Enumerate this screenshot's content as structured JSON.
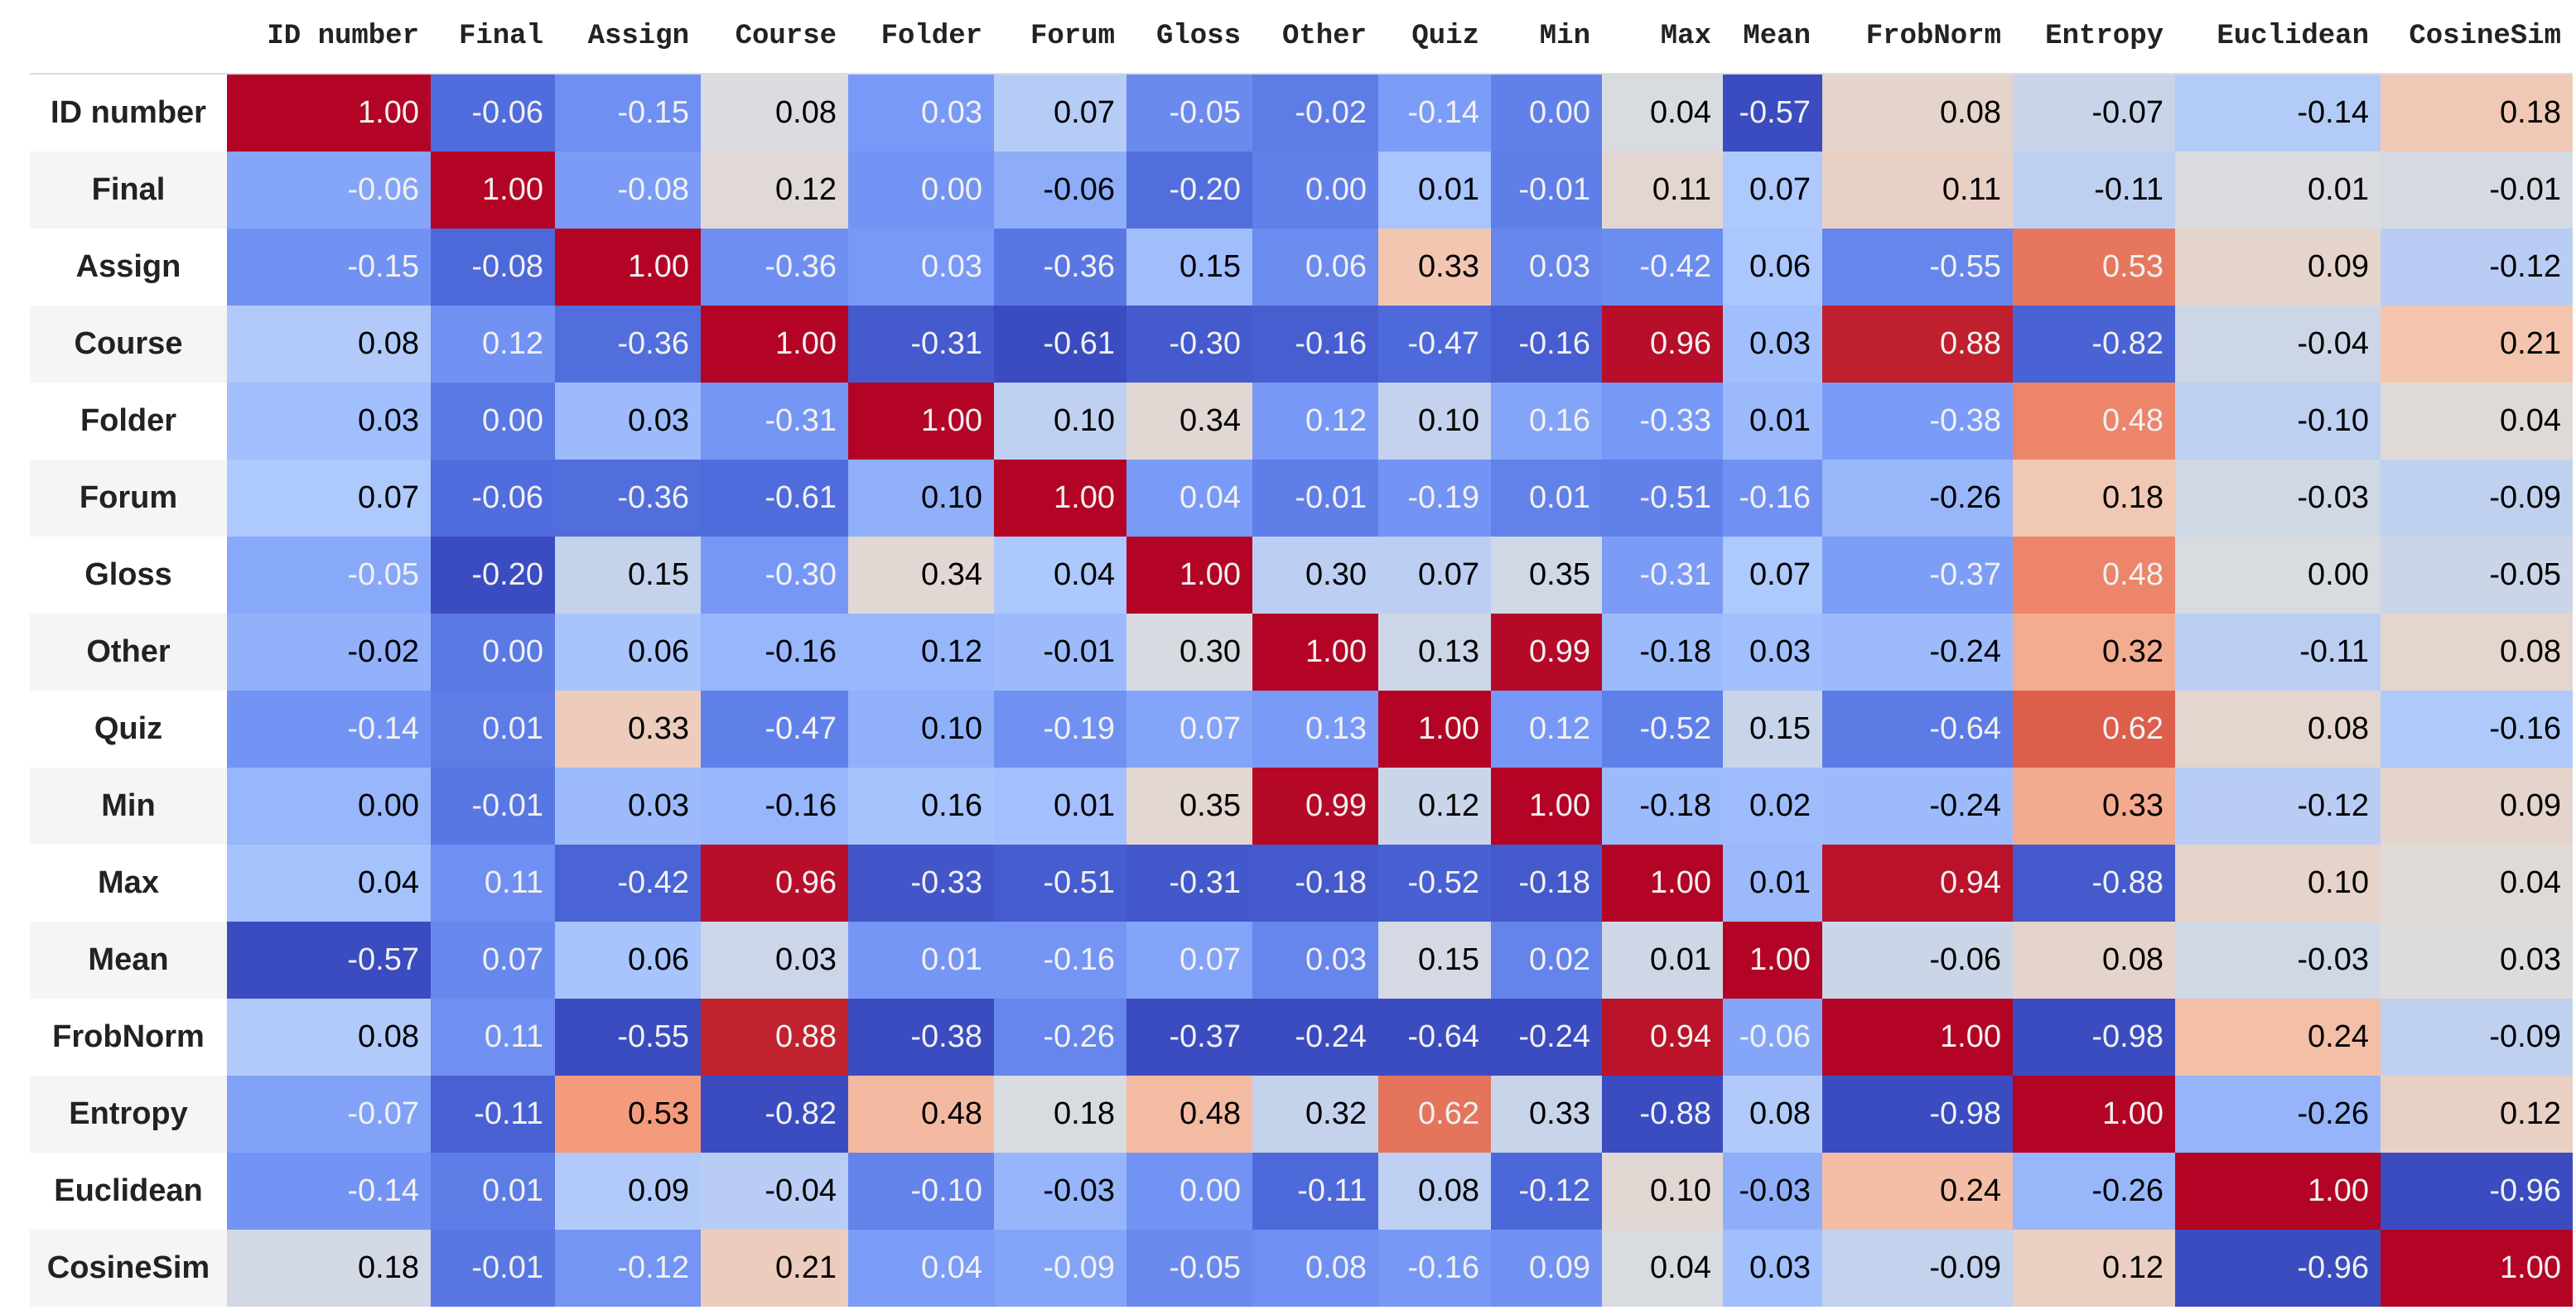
{
  "table": {
    "columns": [
      "ID number",
      "Final",
      "Assign",
      "Course",
      "Folder",
      "Forum",
      "Gloss",
      "Other",
      "Quiz",
      "Min",
      "Max",
      "Mean",
      "FrobNorm",
      "Entropy",
      "Euclidean",
      "CosineSim"
    ],
    "rows": [
      {
        "label": "ID number",
        "values": [
          "1.00",
          "-0.06",
          "-0.15",
          "0.08",
          "0.03",
          "0.07",
          "-0.05",
          "-0.02",
          "-0.14",
          "0.00",
          "0.04",
          "-0.57",
          "0.08",
          "-0.07",
          "-0.14",
          "0.18"
        ]
      },
      {
        "label": "Final",
        "values": [
          "-0.06",
          "1.00",
          "-0.08",
          "0.12",
          "0.00",
          "-0.06",
          "-0.20",
          "0.00",
          "0.01",
          "-0.01",
          "0.11",
          "0.07",
          "0.11",
          "-0.11",
          "0.01",
          "-0.01"
        ]
      },
      {
        "label": "Assign",
        "values": [
          "-0.15",
          "-0.08",
          "1.00",
          "-0.36",
          "0.03",
          "-0.36",
          "0.15",
          "0.06",
          "0.33",
          "0.03",
          "-0.42",
          "0.06",
          "-0.55",
          "0.53",
          "0.09",
          "-0.12"
        ]
      },
      {
        "label": "Course",
        "values": [
          "0.08",
          "0.12",
          "-0.36",
          "1.00",
          "-0.31",
          "-0.61",
          "-0.30",
          "-0.16",
          "-0.47",
          "-0.16",
          "0.96",
          "0.03",
          "0.88",
          "-0.82",
          "-0.04",
          "0.21"
        ]
      },
      {
        "label": "Folder",
        "values": [
          "0.03",
          "0.00",
          "0.03",
          "-0.31",
          "1.00",
          "0.10",
          "0.34",
          "0.12",
          "0.10",
          "0.16",
          "-0.33",
          "0.01",
          "-0.38",
          "0.48",
          "-0.10",
          "0.04"
        ]
      },
      {
        "label": "Forum",
        "values": [
          "0.07",
          "-0.06",
          "-0.36",
          "-0.61",
          "0.10",
          "1.00",
          "0.04",
          "-0.01",
          "-0.19",
          "0.01",
          "-0.51",
          "-0.16",
          "-0.26",
          "0.18",
          "-0.03",
          "-0.09"
        ]
      },
      {
        "label": "Gloss",
        "values": [
          "-0.05",
          "-0.20",
          "0.15",
          "-0.30",
          "0.34",
          "0.04",
          "1.00",
          "0.30",
          "0.07",
          "0.35",
          "-0.31",
          "0.07",
          "-0.37",
          "0.48",
          "0.00",
          "-0.05"
        ]
      },
      {
        "label": "Other",
        "values": [
          "-0.02",
          "0.00",
          "0.06",
          "-0.16",
          "0.12",
          "-0.01",
          "0.30",
          "1.00",
          "0.13",
          "0.99",
          "-0.18",
          "0.03",
          "-0.24",
          "0.32",
          "-0.11",
          "0.08"
        ]
      },
      {
        "label": "Quiz",
        "values": [
          "-0.14",
          "0.01",
          "0.33",
          "-0.47",
          "0.10",
          "-0.19",
          "0.07",
          "0.13",
          "1.00",
          "0.12",
          "-0.52",
          "0.15",
          "-0.64",
          "0.62",
          "0.08",
          "-0.16"
        ]
      },
      {
        "label": "Min",
        "values": [
          "0.00",
          "-0.01",
          "0.03",
          "-0.16",
          "0.16",
          "0.01",
          "0.35",
          "0.99",
          "0.12",
          "1.00",
          "-0.18",
          "0.02",
          "-0.24",
          "0.33",
          "-0.12",
          "0.09"
        ]
      },
      {
        "label": "Max",
        "values": [
          "0.04",
          "0.11",
          "-0.42",
          "0.96",
          "-0.33",
          "-0.51",
          "-0.31",
          "-0.18",
          "-0.52",
          "-0.18",
          "1.00",
          "0.01",
          "0.94",
          "-0.88",
          "0.10",
          "0.04"
        ]
      },
      {
        "label": "Mean",
        "values": [
          "-0.57",
          "0.07",
          "0.06",
          "0.03",
          "0.01",
          "-0.16",
          "0.07",
          "0.03",
          "0.15",
          "0.02",
          "0.01",
          "1.00",
          "-0.06",
          "0.08",
          "-0.03",
          "0.03"
        ]
      },
      {
        "label": "FrobNorm",
        "values": [
          "0.08",
          "0.11",
          "-0.55",
          "0.88",
          "-0.38",
          "-0.26",
          "-0.37",
          "-0.24",
          "-0.64",
          "-0.24",
          "0.94",
          "-0.06",
          "1.00",
          "-0.98",
          "0.24",
          "-0.09"
        ]
      },
      {
        "label": "Entropy",
        "values": [
          "-0.07",
          "-0.11",
          "0.53",
          "-0.82",
          "0.48",
          "0.18",
          "0.48",
          "0.32",
          "0.62",
          "0.33",
          "-0.88",
          "0.08",
          "-0.98",
          "1.00",
          "-0.26",
          "0.12"
        ]
      },
      {
        "label": "Euclidean",
        "values": [
          "-0.14",
          "0.01",
          "0.09",
          "-0.04",
          "-0.10",
          "-0.03",
          "0.00",
          "-0.11",
          "0.08",
          "-0.12",
          "0.10",
          "-0.03",
          "0.24",
          "-0.26",
          "1.00",
          "-0.96"
        ]
      },
      {
        "label": "CosineSim",
        "values": [
          "0.18",
          "-0.01",
          "-0.12",
          "0.21",
          "0.04",
          "-0.09",
          "-0.05",
          "0.08",
          "-0.16",
          "0.09",
          "0.04",
          "0.03",
          "-0.09",
          "0.12",
          "-0.96",
          "1.00"
        ]
      }
    ]
  }
}
